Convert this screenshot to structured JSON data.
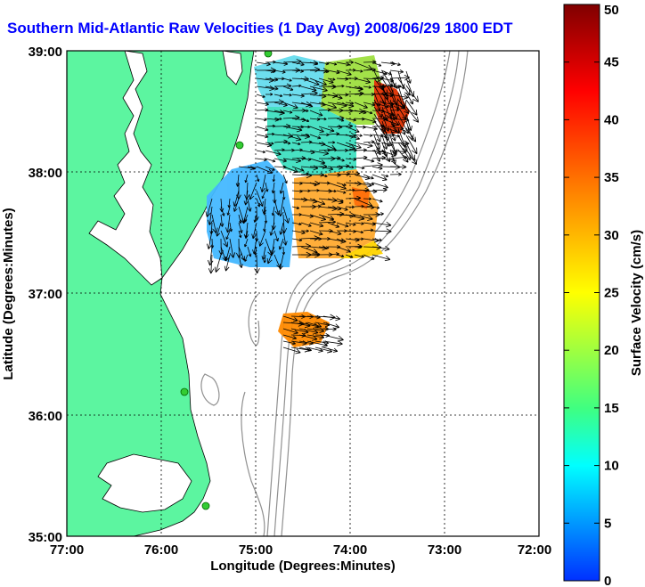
{
  "title": "Southern Mid-Atlantic Raw Velocities (1 Day Avg) 2008/06/29 1800 EDT",
  "xaxis": {
    "label": "Longitude (Degrees:Minutes)",
    "ticks": [
      "77:00",
      "76:00",
      "75:00",
      "74:00",
      "73:00",
      "72:00"
    ],
    "range": [
      -77,
      -72
    ]
  },
  "yaxis": {
    "label": "Latitude (Degrees:Minutes)",
    "ticks": [
      "39:00",
      "38:00",
      "37:00",
      "36:00",
      "35:00"
    ],
    "range": [
      35,
      39
    ]
  },
  "colorbar": {
    "label": "Surface Velocity (cm/s)",
    "ticks": [
      "50",
      "45",
      "40",
      "35",
      "30",
      "25",
      "20",
      "15",
      "10",
      "5",
      "0"
    ],
    "range": [
      0,
      50
    ]
  },
  "colors": {
    "land": "#5cf5a0",
    "water_bg": "#ffffff",
    "title": "#0000ff",
    "bathymetry": "#909090",
    "station": "#33cc33"
  },
  "stations_count": 4
}
